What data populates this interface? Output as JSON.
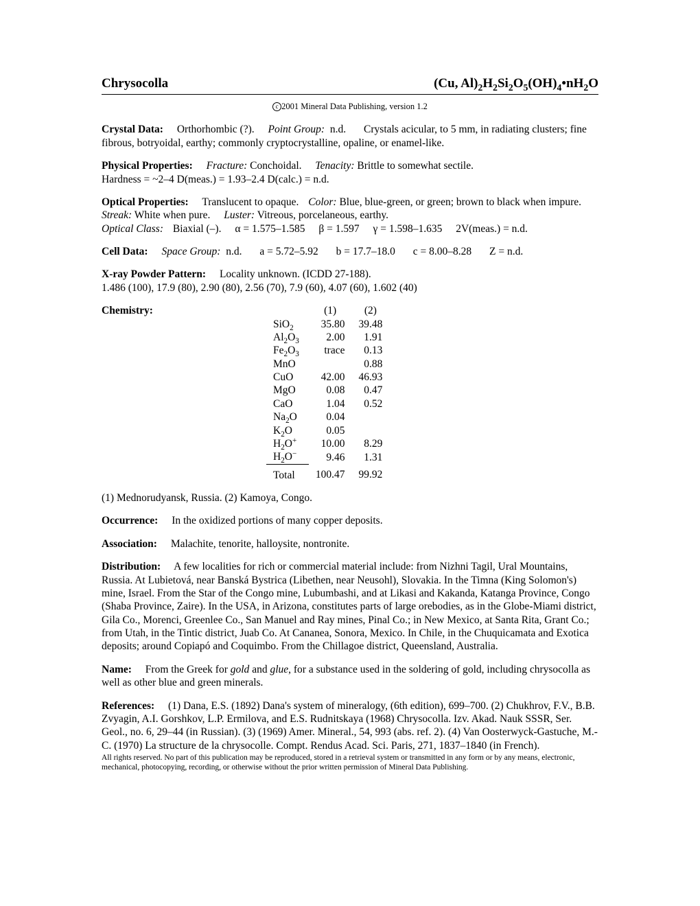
{
  "header": {
    "mineral_name": "Chrysocolla",
    "formula_html": "(Cu, Al)<sub>2</sub>H<sub>2</sub>Si<sub>2</sub>O<sub>5</sub>(OH)<sub>4</sub>&bull;nH<sub>2</sub>O",
    "copyright_text": "2001 Mineral Data Publishing, version 1.2"
  },
  "crystal_data": {
    "label": "Crystal Data:",
    "system": "Orthorhombic (?).",
    "point_group_label": "Point Group:",
    "point_group": "n.d.",
    "habit": "Crystals acicular, to 5 mm, in radiating clusters; fine fibrous, botryoidal, earthy; commonly cryptocrystalline, opaline, or enamel-like."
  },
  "physical": {
    "label": "Physical Properties:",
    "fracture_label": "Fracture:",
    "fracture": "Conchoidal.",
    "tenacity_label": "Tenacity:",
    "tenacity": "Brittle to somewhat sectile.",
    "hardness_line": "Hardness = ~2–4   D(meas.) = 1.93–2.4   D(calc.) = n.d."
  },
  "optical": {
    "label": "Optical Properties:",
    "transparency": "Translucent to opaque.",
    "color_label": "Color:",
    "color": "Blue, blue-green, or green; brown to black when impure.",
    "streak_label": "Streak:",
    "streak": "White when pure.",
    "luster_label": "Luster:",
    "luster": "Vitreous, porcelaneous, earthy.",
    "class_label": "Optical Class:",
    "class_value": "Biaxial (–).",
    "alpha": "α = 1.575–1.585",
    "beta": "β = 1.597",
    "gamma": "γ = 1.598–1.635",
    "twoV": "2V(meas.) = n.d."
  },
  "cell": {
    "label": "Cell Data:",
    "space_group_label": "Space Group:",
    "space_group": "n.d.",
    "a": "a = 5.72–5.92",
    "b": "b = 17.7–18.0",
    "c": "c = 8.00–8.28",
    "z": "Z = n.d."
  },
  "xray": {
    "label": "X-ray Powder Pattern:",
    "locality": "Locality unknown. (ICDD 27-188).",
    "pattern": "1.486 (100), 17.9 (80), 2.90 (80), 2.56 (70), 7.9 (60), 4.07 (60), 1.602 (40)"
  },
  "chemistry": {
    "label": "Chemistry:",
    "col1": "(1)",
    "col2": "(2)",
    "rows": [
      {
        "oxide_html": "SiO<sub>2</sub>",
        "v1": "35.80",
        "v2": "39.48"
      },
      {
        "oxide_html": "Al<sub>2</sub>O<sub>3</sub>",
        "v1": "2.00",
        "v2": "1.91"
      },
      {
        "oxide_html": "Fe<sub>2</sub>O<sub>3</sub>",
        "v1": "trace",
        "v2": "0.13"
      },
      {
        "oxide_html": "MnO",
        "v1": "",
        "v2": "0.88"
      },
      {
        "oxide_html": "CuO",
        "v1": "42.00",
        "v2": "46.93"
      },
      {
        "oxide_html": "MgO",
        "v1": "0.08",
        "v2": "0.47"
      },
      {
        "oxide_html": "CaO",
        "v1": "1.04",
        "v2": "0.52"
      },
      {
        "oxide_html": "Na<sub>2</sub>O",
        "v1": "0.04",
        "v2": ""
      },
      {
        "oxide_html": "K<sub>2</sub>O",
        "v1": "0.05",
        "v2": ""
      },
      {
        "oxide_html": "H<sub>2</sub>O<sup>+</sup>",
        "v1": "10.00",
        "v2": "8.29"
      },
      {
        "oxide_html": "H<sub>2</sub>O<sup>&minus;</sup>",
        "v1": "9.46",
        "v2": "1.31"
      }
    ],
    "total_label": "Total",
    "total1": "100.47",
    "total2": "99.92",
    "footnote": "(1) Mednorudyansk, Russia. (2) Kamoya, Congo."
  },
  "occurrence": {
    "label": "Occurrence:",
    "text": "In the oxidized portions of many copper deposits."
  },
  "association": {
    "label": "Association:",
    "text": "Malachite, tenorite, halloysite, nontronite."
  },
  "distribution": {
    "label": "Distribution:",
    "text": "A few localities for rich or commercial material include: from Nizhni Tagil, Ural Mountains, Russia. At Lubietová, near Banská Bystrica (Libethen, near Neusohl), Slovakia. In the Timna (King Solomon's) mine, Israel. From the Star of the Congo mine, Lubumbashi, and at Likasi and Kakanda, Katanga Province, Congo (Shaba Province, Zaire). In the USA, in Arizona, constitutes parts of large orebodies, as in the Globe-Miami district, Gila Co., Morenci, Greenlee Co., San Manuel and Ray mines, Pinal Co.; in New Mexico, at Santa Rita, Grant Co.; from Utah, in the Tintic district, Juab Co. At Cananea, Sonora, Mexico. In Chile, in the Chuquicamata and Exotica deposits; around Copiapó and Coquimbo. From the Chillagoe district, Queensland, Australia."
  },
  "name": {
    "label": "Name:",
    "pre": "From the Greek for ",
    "i1": "gold",
    "mid": " and ",
    "i2": "glue",
    "post": ", for a substance used in the soldering of gold, including chrysocolla as well as other blue and green minerals."
  },
  "references": {
    "label": "References:",
    "text": "(1) Dana, E.S. (1892) Dana's system of mineralogy, (6th edition), 699–700. (2) Chukhrov, F.V., B.B. Zvyagin, A.I. Gorshkov, L.P. Ermilova, and E.S. Rudnitskaya (1968) Chrysocolla. Izv. Akad. Nauk SSSR, Ser. Geol., no. 6, 29–44 (in Russian). (3) (1969) Amer. Mineral., 54, 993 (abs. ref. 2). (4) Van Oosterwyck-Gastuche, M.-C. (1970) La structure de la chrysocolle. Compt. Rendus Acad. Sci. Paris, 271, 1837–1840 (in French)."
  },
  "footer": {
    "text": "All rights reserved. No part of this publication may be reproduced, stored in a retrieval system or transmitted in any form or by any means, electronic, mechanical, photocopying, recording, or otherwise without the prior written permission of Mineral Data Publishing."
  }
}
